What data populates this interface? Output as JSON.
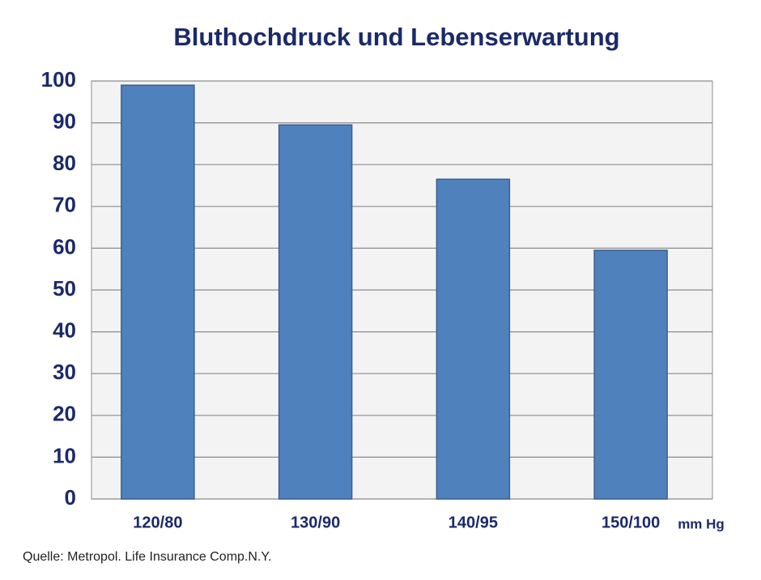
{
  "chart_data": {
    "type": "bar",
    "title": "Bluthochdruck und Lebenserwartung",
    "categories": [
      "120/80",
      "130/90",
      "140/95",
      "150/100"
    ],
    "values": [
      99,
      89.5,
      76.5,
      59.5
    ],
    "color": "#4f81bd",
    "x_unit": "mm Hg",
    "source": "Quelle: Metropol. Life Insurance Comp.N.Y.",
    "ylim": [
      0,
      100
    ],
    "yticks": [
      0,
      10,
      20,
      30,
      40,
      50,
      60,
      70,
      80,
      90,
      100
    ],
    "grid": true
  }
}
